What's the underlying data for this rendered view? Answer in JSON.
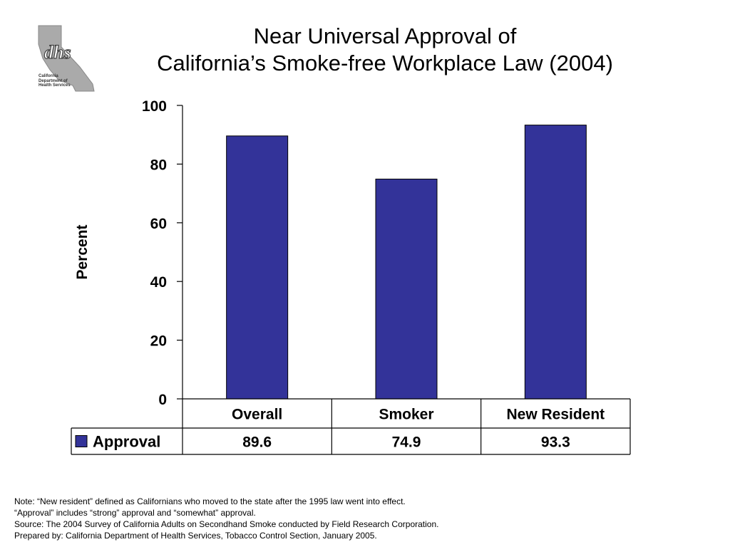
{
  "logo": {
    "name": "dhs",
    "caption_lines": [
      "California",
      "Department of",
      "Health Services"
    ]
  },
  "title_lines": [
    "Near Universal Approval of",
    "California’s Smoke-free Workplace Law (2004)"
  ],
  "chart_data": {
    "type": "bar",
    "categories": [
      "Overall",
      "Smoker",
      "New Resident"
    ],
    "series": [
      {
        "name": "Approval",
        "values": [
          89.6,
          74.9,
          93.3
        ],
        "color": "#333399"
      }
    ],
    "ylabel": "Percent",
    "ylim": [
      0,
      100
    ],
    "yticks": [
      0,
      20,
      40,
      60,
      80,
      100
    ],
    "data_table": true,
    "legend": "data-table-left"
  },
  "notes": [
    "Note: “New resident” defined as Californians who moved to the state after the 1995 law went into effect.",
    "“Approval” includes “strong” approval and “somewhat” approval.",
    "Source: The 2004 Survey of California Adults on Secondhand Smoke conducted by Field Research Corporation.",
    "Prepared by: California Department of Health Services, Tobacco Control Section, January 2005."
  ]
}
